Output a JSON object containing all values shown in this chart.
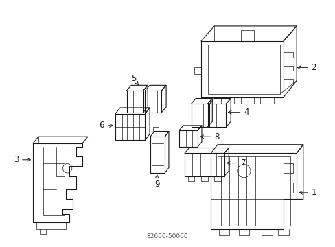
{
  "background_color": "#ffffff",
  "line_color": "#1a1a1a",
  "line_width": 0.8,
  "thin_lw": 0.5,
  "label_fontsize": 8.5,
  "fig_width": 4.89,
  "fig_height": 3.6,
  "dpi": 100
}
